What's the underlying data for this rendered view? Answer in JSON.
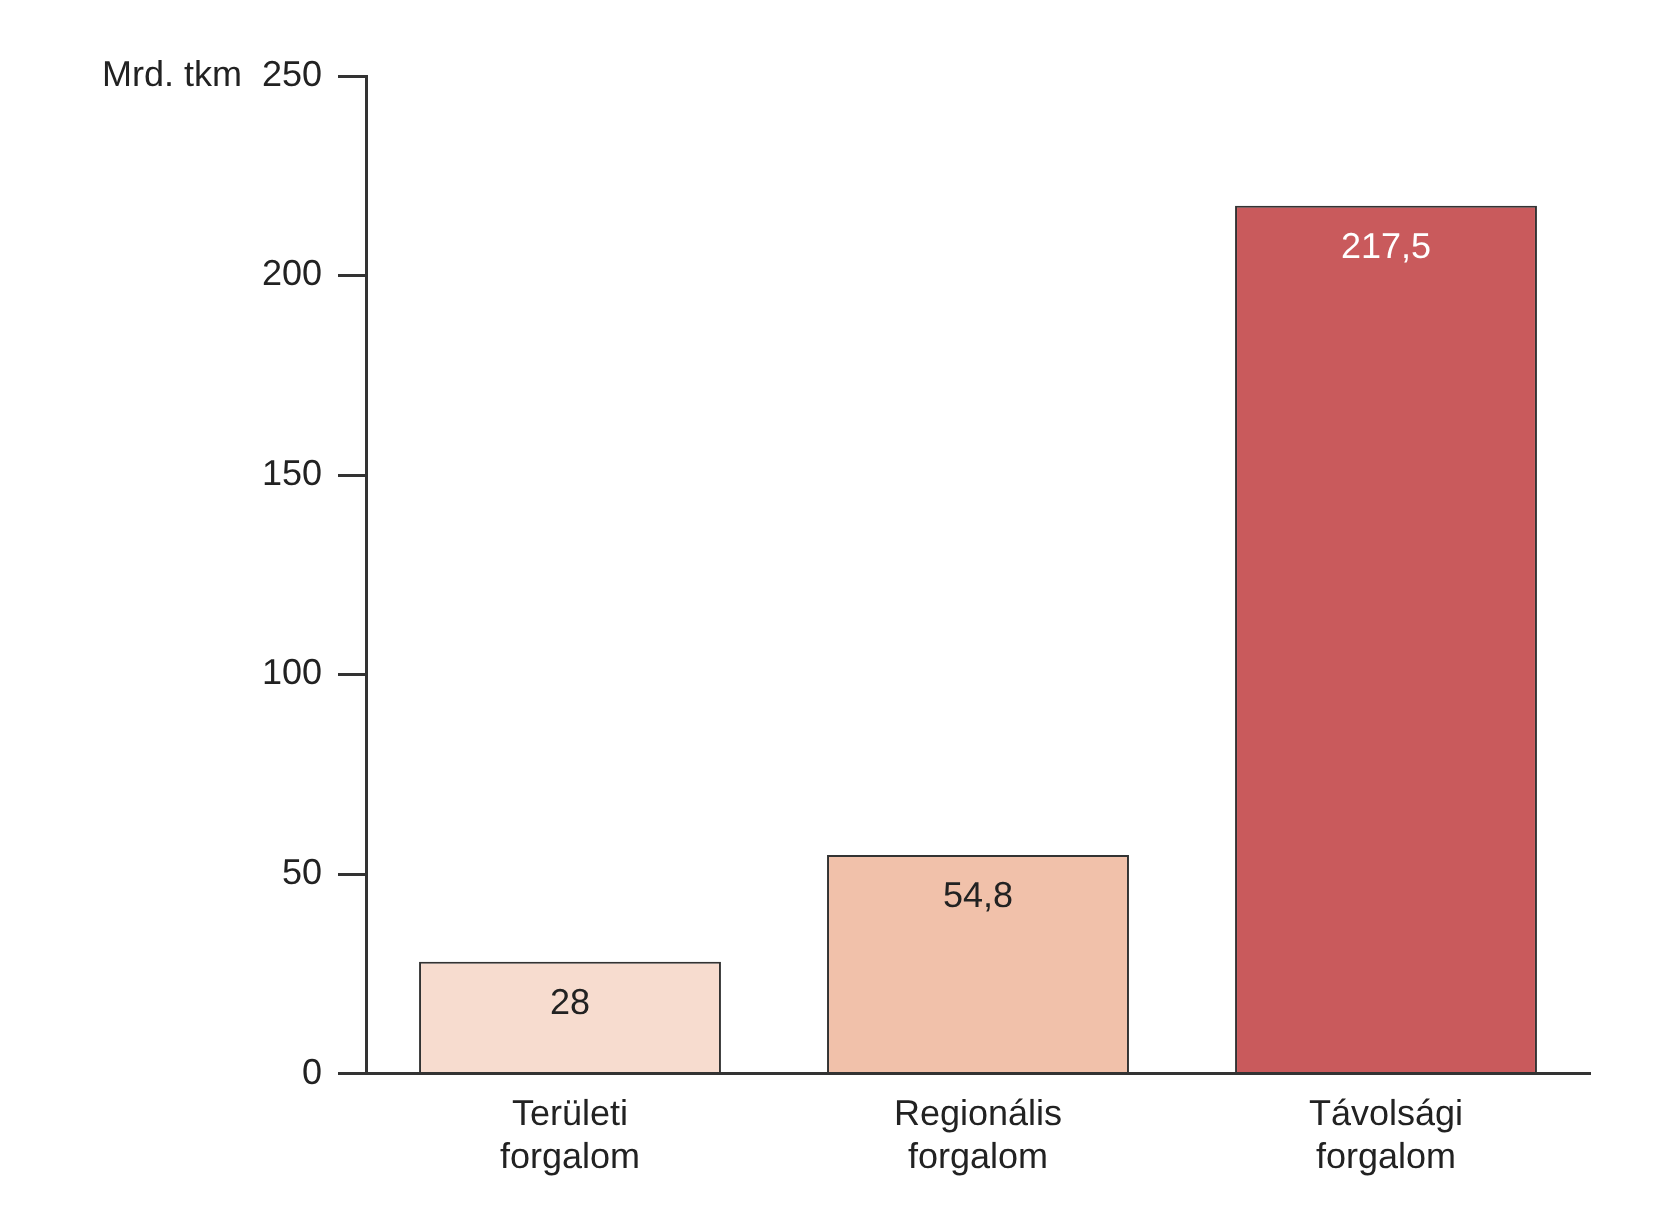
{
  "chart_data": {
    "type": "bar",
    "ylabel": "Mrd. tkm",
    "categories": [
      "Területi forgalom",
      "Regionális forgalom",
      "Távolsági forgalom"
    ],
    "values": [
      28,
      54.8,
      217.5
    ],
    "colors": [
      "#f7dccf",
      "#f1c1aa",
      "#c95a5c"
    ],
    "value_labels": [
      "28",
      "54,8",
      "217,5"
    ],
    "ylim": [
      0,
      250
    ],
    "yticks": [
      0,
      50,
      100,
      150,
      200,
      250
    ],
    "grid": false,
    "legend": false
  }
}
